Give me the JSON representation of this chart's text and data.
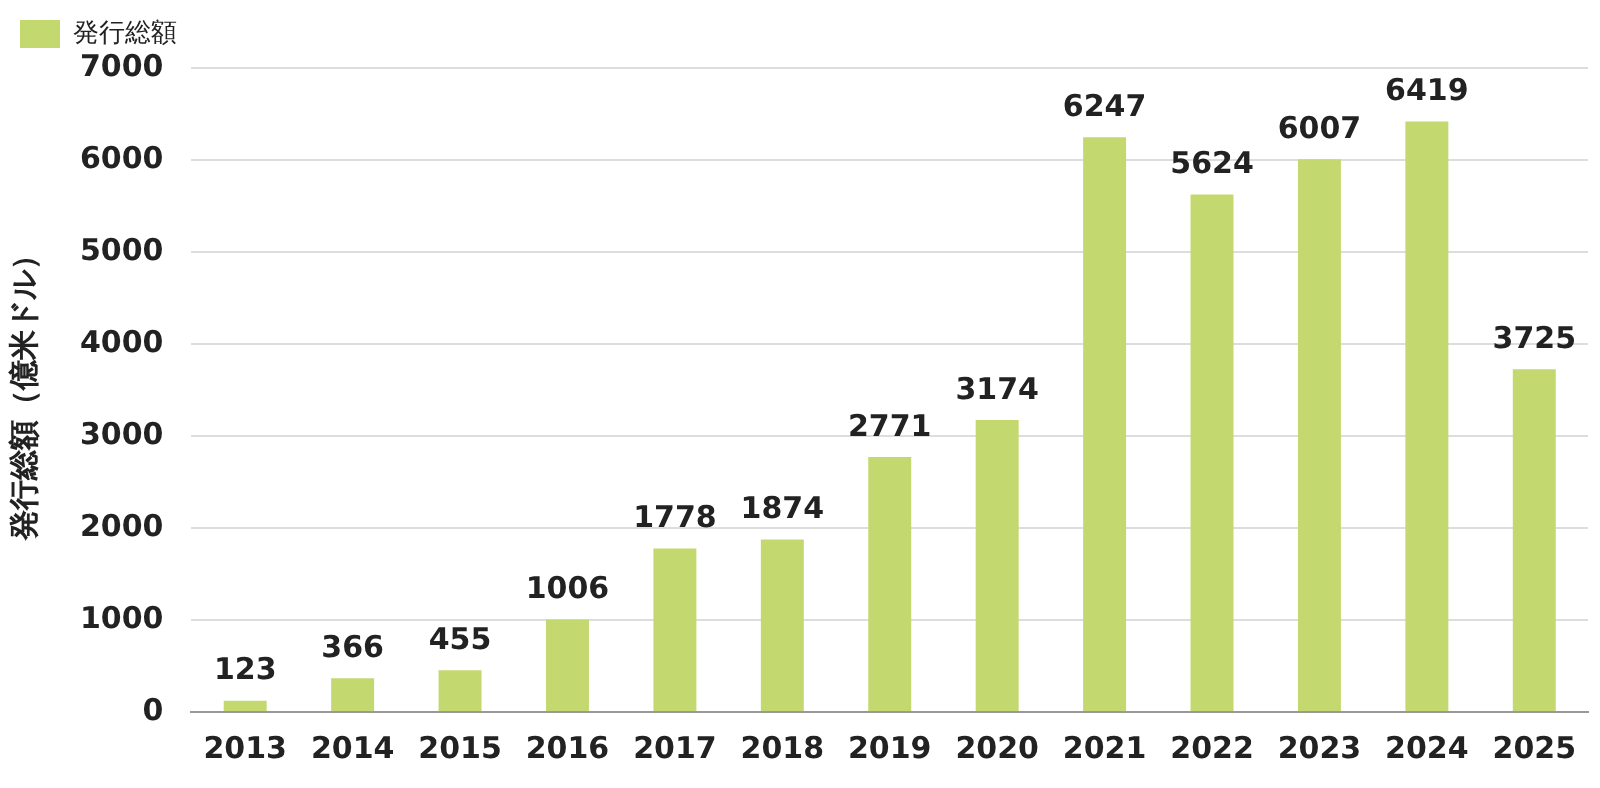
{
  "chart_data": {
    "type": "bar",
    "ylabel": "発行総額（億米ドル）",
    "categories": [
      "2013",
      "2014",
      "2015",
      "2016",
      "2017",
      "2018",
      "2019",
      "2020",
      "2021",
      "2022",
      "2023",
      "2024",
      "2025"
    ],
    "series": [
      {
        "name": "発行総額",
        "color": "#c3d96f",
        "values": [
          123,
          366,
          455,
          1006,
          1778,
          1874,
          2771,
          3174,
          6247,
          5624,
          6007,
          6419,
          3725
        ]
      }
    ],
    "ylim": [
      0,
      7000
    ],
    "yticks": [
      0,
      1000,
      2000,
      3000,
      4000,
      5000,
      6000,
      7000
    ],
    "grid": "y",
    "legend": "top left",
    "data_labels": true
  }
}
